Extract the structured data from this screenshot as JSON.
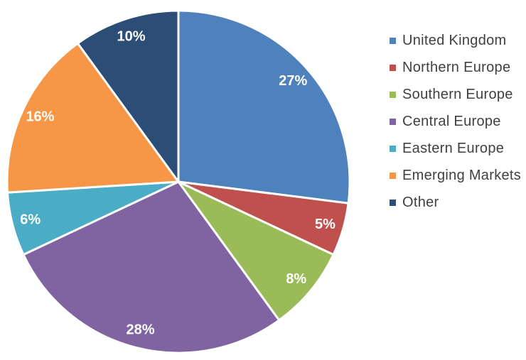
{
  "chart_data": {
    "type": "pie",
    "title": "",
    "categories": [
      "United Kingdom",
      "Northern Europe",
      "Southern Europe",
      "Central Europe",
      "Eastern Europe",
      "Emerging Markets",
      "Other"
    ],
    "values": [
      27,
      5,
      8,
      28,
      6,
      16,
      10
    ],
    "slice_labels": [
      "27%",
      "5%",
      "8%",
      "28%",
      "6%",
      "16%",
      "10%"
    ],
    "colors": [
      "#4F81BD",
      "#C0504D",
      "#9BBB59",
      "#8064A2",
      "#4BACC6",
      "#F79646",
      "#2C4D75"
    ],
    "start_angle_deg": 0,
    "direction": "clockwise",
    "separator_color": "#FFFFFF",
    "slice_label_color": "#FFFFFF",
    "legend_position": "right",
    "legend_text_color": "#404040",
    "background_color": "#FFFFFF"
  }
}
